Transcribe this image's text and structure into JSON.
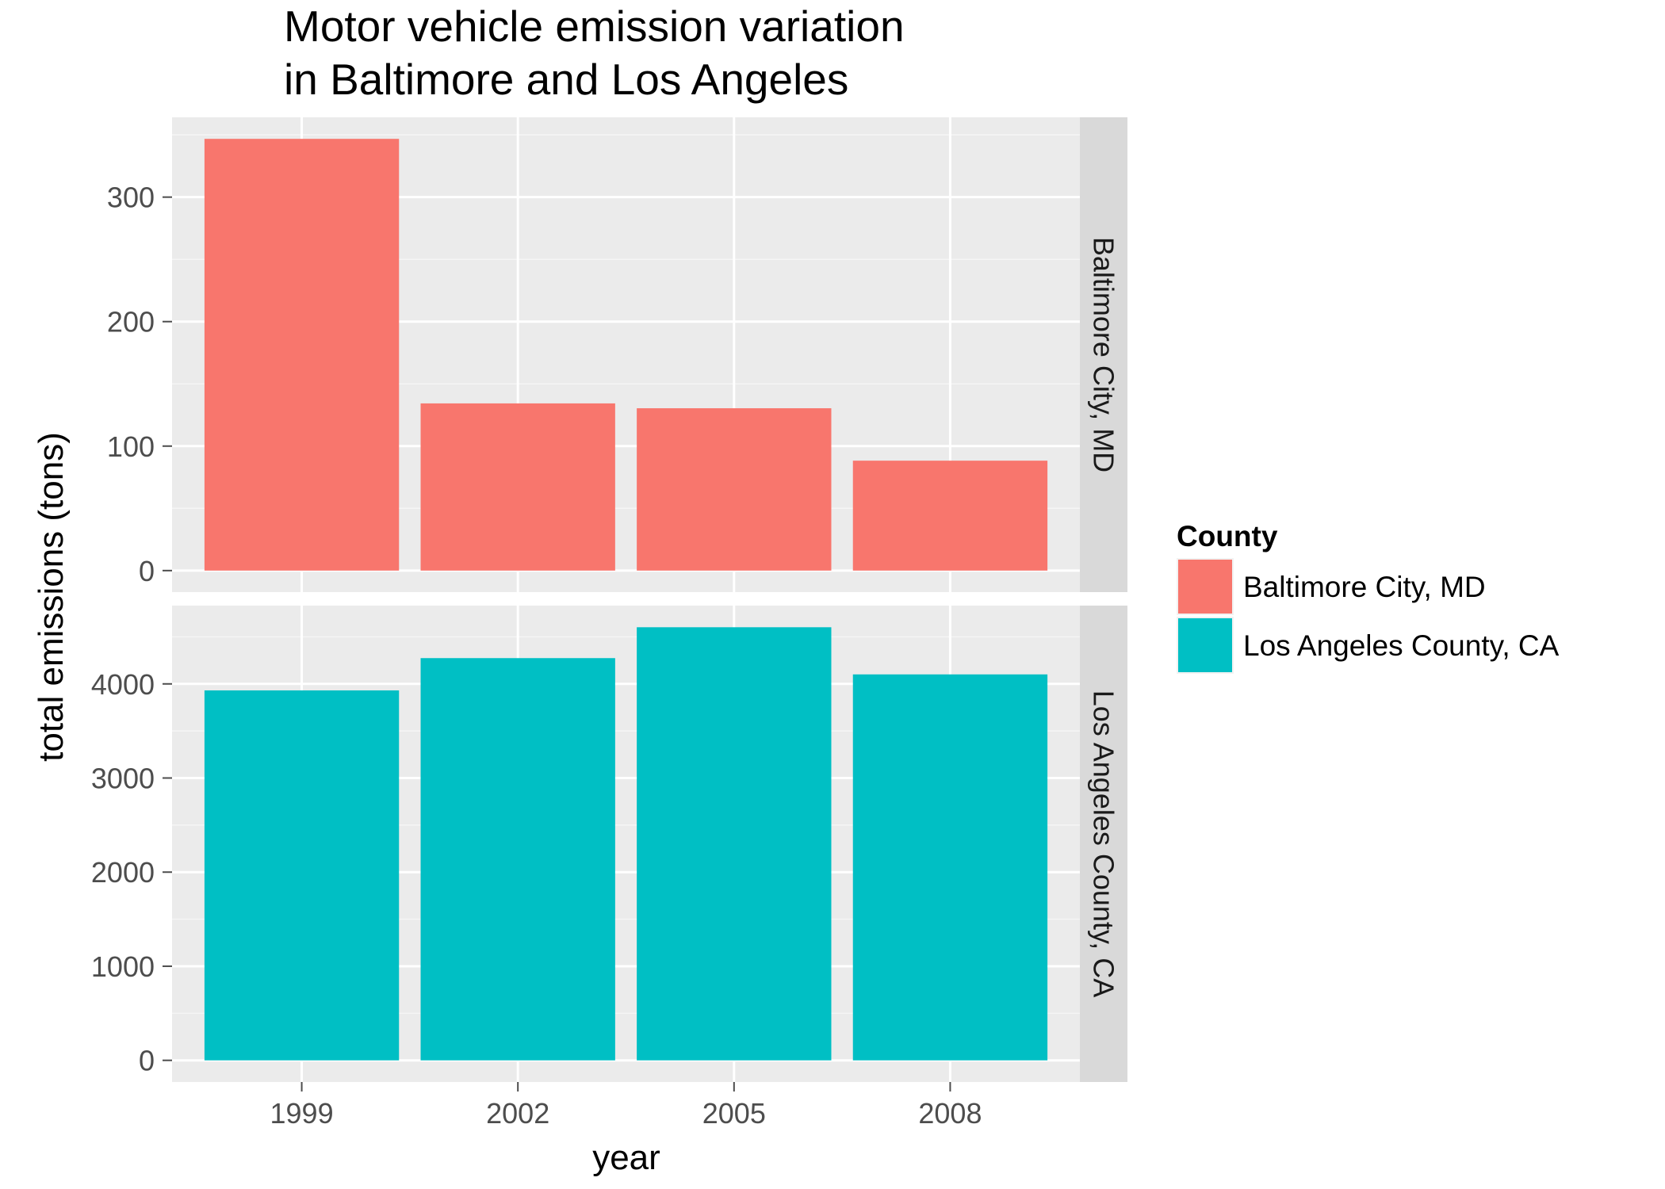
{
  "chart_data": {
    "type": "bar",
    "title_lines": [
      "Motor vehicle emission variation",
      "in Baltimore and Los Angeles"
    ],
    "xlabel": "year",
    "ylabel": "total emissions (tons)",
    "categories": [
      "1999",
      "2002",
      "2005",
      "2008"
    ],
    "legend": {
      "title": "County",
      "placement": "right",
      "items": [
        {
          "label": "Baltimore City, MD",
          "color": "#F8766D"
        },
        {
          "label": "Los Angeles County, CA",
          "color": "#00BFC4"
        }
      ]
    },
    "panels": [
      {
        "strip_label": "Baltimore City, MD",
        "color": "#F8766D",
        "values": [
          346.8,
          134.3,
          130.4,
          88.3
        ],
        "ylim": [
          -17.3,
          364.1
        ],
        "yticks": [
          0,
          100,
          200,
          300
        ]
      },
      {
        "strip_label": "Los Angeles County, CA",
        "color": "#00BFC4",
        "values": [
          3931,
          4274,
          4602,
          4101
        ],
        "ylim": [
          -230,
          4832
        ],
        "yticks": [
          0,
          1000,
          2000,
          3000,
          4000
        ]
      }
    ],
    "grid": true,
    "panel_background": "#EBEBEB",
    "strip_background": "#D9D9D9"
  }
}
